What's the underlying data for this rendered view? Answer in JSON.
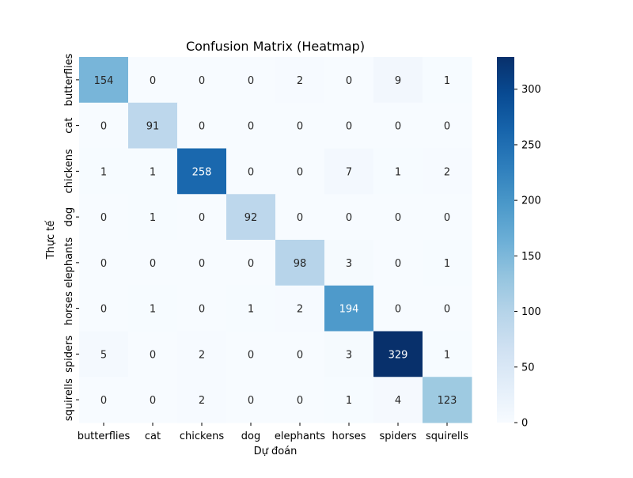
{
  "chart_data": {
    "type": "heatmap",
    "title": "Confusion Matrix (Heatmap)",
    "xlabel": "Dự đoán",
    "ylabel": "Thực tế",
    "x_categories": [
      "butterflies",
      "cat",
      "chickens",
      "dog",
      "elephants",
      "horses",
      "spiders",
      "squirells"
    ],
    "y_categories": [
      "butterflies",
      "cat",
      "chickens",
      "dog",
      "elephants",
      "horses",
      "spiders",
      "squirells"
    ],
    "matrix": [
      [
        154,
        0,
        0,
        0,
        2,
        0,
        9,
        1
      ],
      [
        0,
        91,
        0,
        0,
        0,
        0,
        0,
        0
      ],
      [
        1,
        1,
        258,
        0,
        0,
        7,
        1,
        2
      ],
      [
        0,
        1,
        0,
        92,
        0,
        0,
        0,
        0
      ],
      [
        0,
        0,
        0,
        0,
        98,
        3,
        0,
        1
      ],
      [
        0,
        1,
        0,
        1,
        2,
        194,
        0,
        0
      ],
      [
        5,
        0,
        2,
        0,
        0,
        3,
        329,
        1
      ],
      [
        0,
        0,
        2,
        0,
        0,
        1,
        4,
        123
      ]
    ],
    "colormap": "Blues",
    "colorbar": {
      "range": [
        0,
        329
      ],
      "ticks": [
        0,
        50,
        100,
        150,
        200,
        250,
        300
      ]
    }
  }
}
